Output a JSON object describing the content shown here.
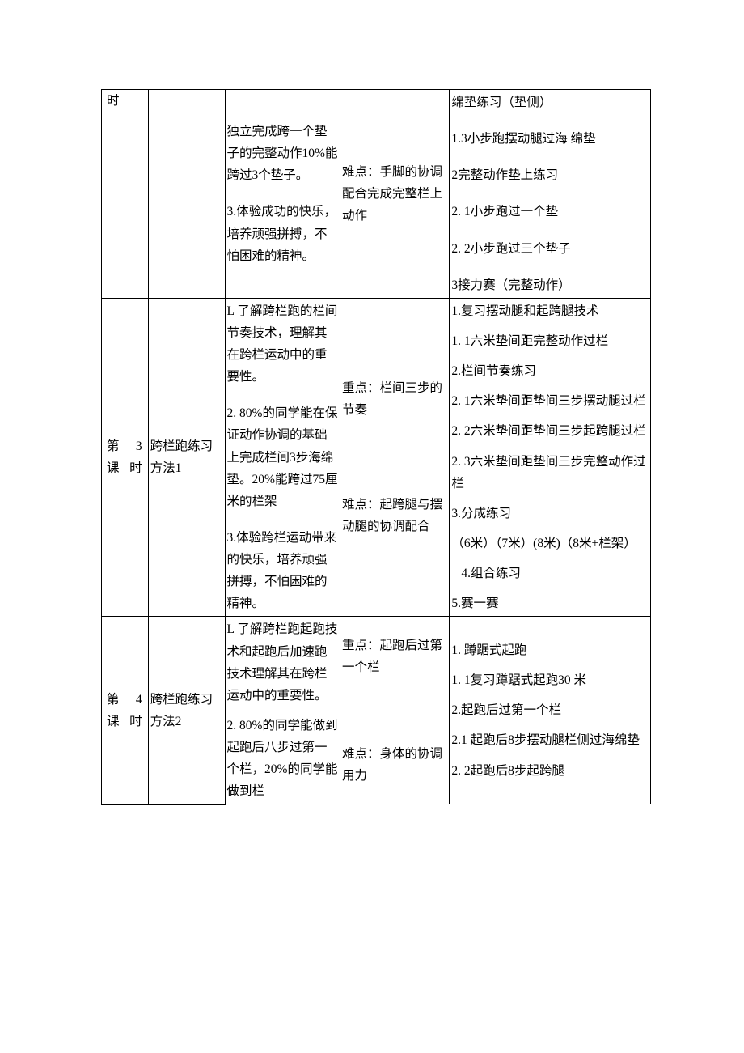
{
  "rows": [
    {
      "c1": "时",
      "c2": "",
      "c3": "独立完成跨一个垫子的完整动作10%能跨过3个垫子。\n\n3.体验成功的快乐，培养顽强拼搏，不怕困难的精神。",
      "c4": "难点：手脚的协调配合完成完整栏上动作",
      "c5": "绵垫练习（垫侧）\n\n1.3小步跑摆动腿过海  绵垫\n\n2完整动作垫上练习\n\n2. 1小步跑过一个垫\n\n2. 2小步跑过三个垫子\n\n3接力赛（完整动作）"
    },
    {
      "c1": "第 3 课 时",
      "c2": "跨栏跑练习方法1",
      "c3": "L         了解跨栏跑的栏间节奏技术，理解其在跨栏运动中的重要性。\n\n2.          80%的同学能在保证动作协调的基础上完成栏间3步海绵垫。20%能跨过75厘米的栏架\n\n3.体验跨栏运动带来的快乐，培养顽强拼搏，不怕困难的精神。",
      "c4a": "重点：栏间三步的节奏",
      "c4b": "难点：起跨腿与摆动腿的协调配合",
      "c5": "1.复习摆动腿和起跨腿技术\n\n1.          1六米垫间距完整动作过栏\n\n2.栏间节奏练习\n\n2. 1六米垫间距垫间三步摆动腿过栏\n\n2. 2六米垫间距垫间三步起跨腿过栏\n\n2. 3六米垫间距垫间三步完整动作过栏\n\n3.分成练习\n\n（6米）（7米）(8米)（8米+栏架）\n\n4.组合练习\n\n5.赛一赛"
    },
    {
      "c1": "第 4 课 时",
      "c2": "跨栏跑练习方法2",
      "c3": "L         了解跨栏跑起跑技术和起跑后加速跑技术理解其在跨栏运动中的重要性。\n\n2. 80%的同学能做到起跑后八步过第一个栏，20%的同学能做到栏",
      "c4a": "重点：起跑后过第一个栏",
      "c4b": "难点：身体的协调用力",
      "c5": "1. 蹲踞式起跑\n\n1. 1复习蹲踞式起跑30 米\n\n2.起跑后过第一个栏\n\n2.1   起跑后8步摆动腿栏侧过海绵垫\n\n2. 2起跑后8步起跨腿"
    }
  ]
}
